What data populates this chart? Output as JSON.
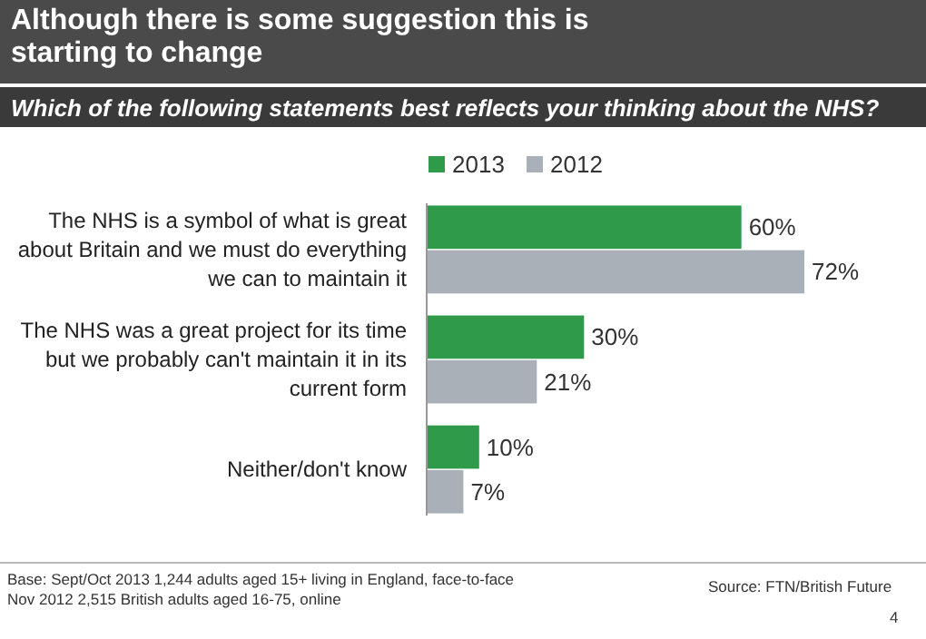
{
  "chart_data": {
    "type": "bar",
    "orientation": "horizontal",
    "title": "Although there is some suggestion this is starting to change",
    "subtitle": "Which of the following statements best reflects your thinking about the NHS?",
    "categories": [
      "The NHS is a symbol of what is great about Britain and we must do everything we can to maintain it",
      "The NHS was a great project for its time but we probably can't maintain it in its current form",
      "Neither/don't know"
    ],
    "series": [
      {
        "name": "2013",
        "color": "#2e9a4a",
        "values": [
          60,
          30,
          10
        ],
        "value_labels": [
          "60%",
          "30%",
          "10%"
        ]
      },
      {
        "name": "2012",
        "color": "#aab0b8",
        "values": [
          72,
          21,
          7
        ],
        "value_labels": [
          "72%",
          "21%",
          "7%"
        ]
      }
    ],
    "legend": "top",
    "annotations": [
      "Base:  Sept/Oct 2013 1,244 adults aged 15+ living in England, face-to-face",
      "Nov 2012 2,515 British adults aged 16-75, online",
      "Source:  FTN/British Future",
      "4"
    ]
  }
}
